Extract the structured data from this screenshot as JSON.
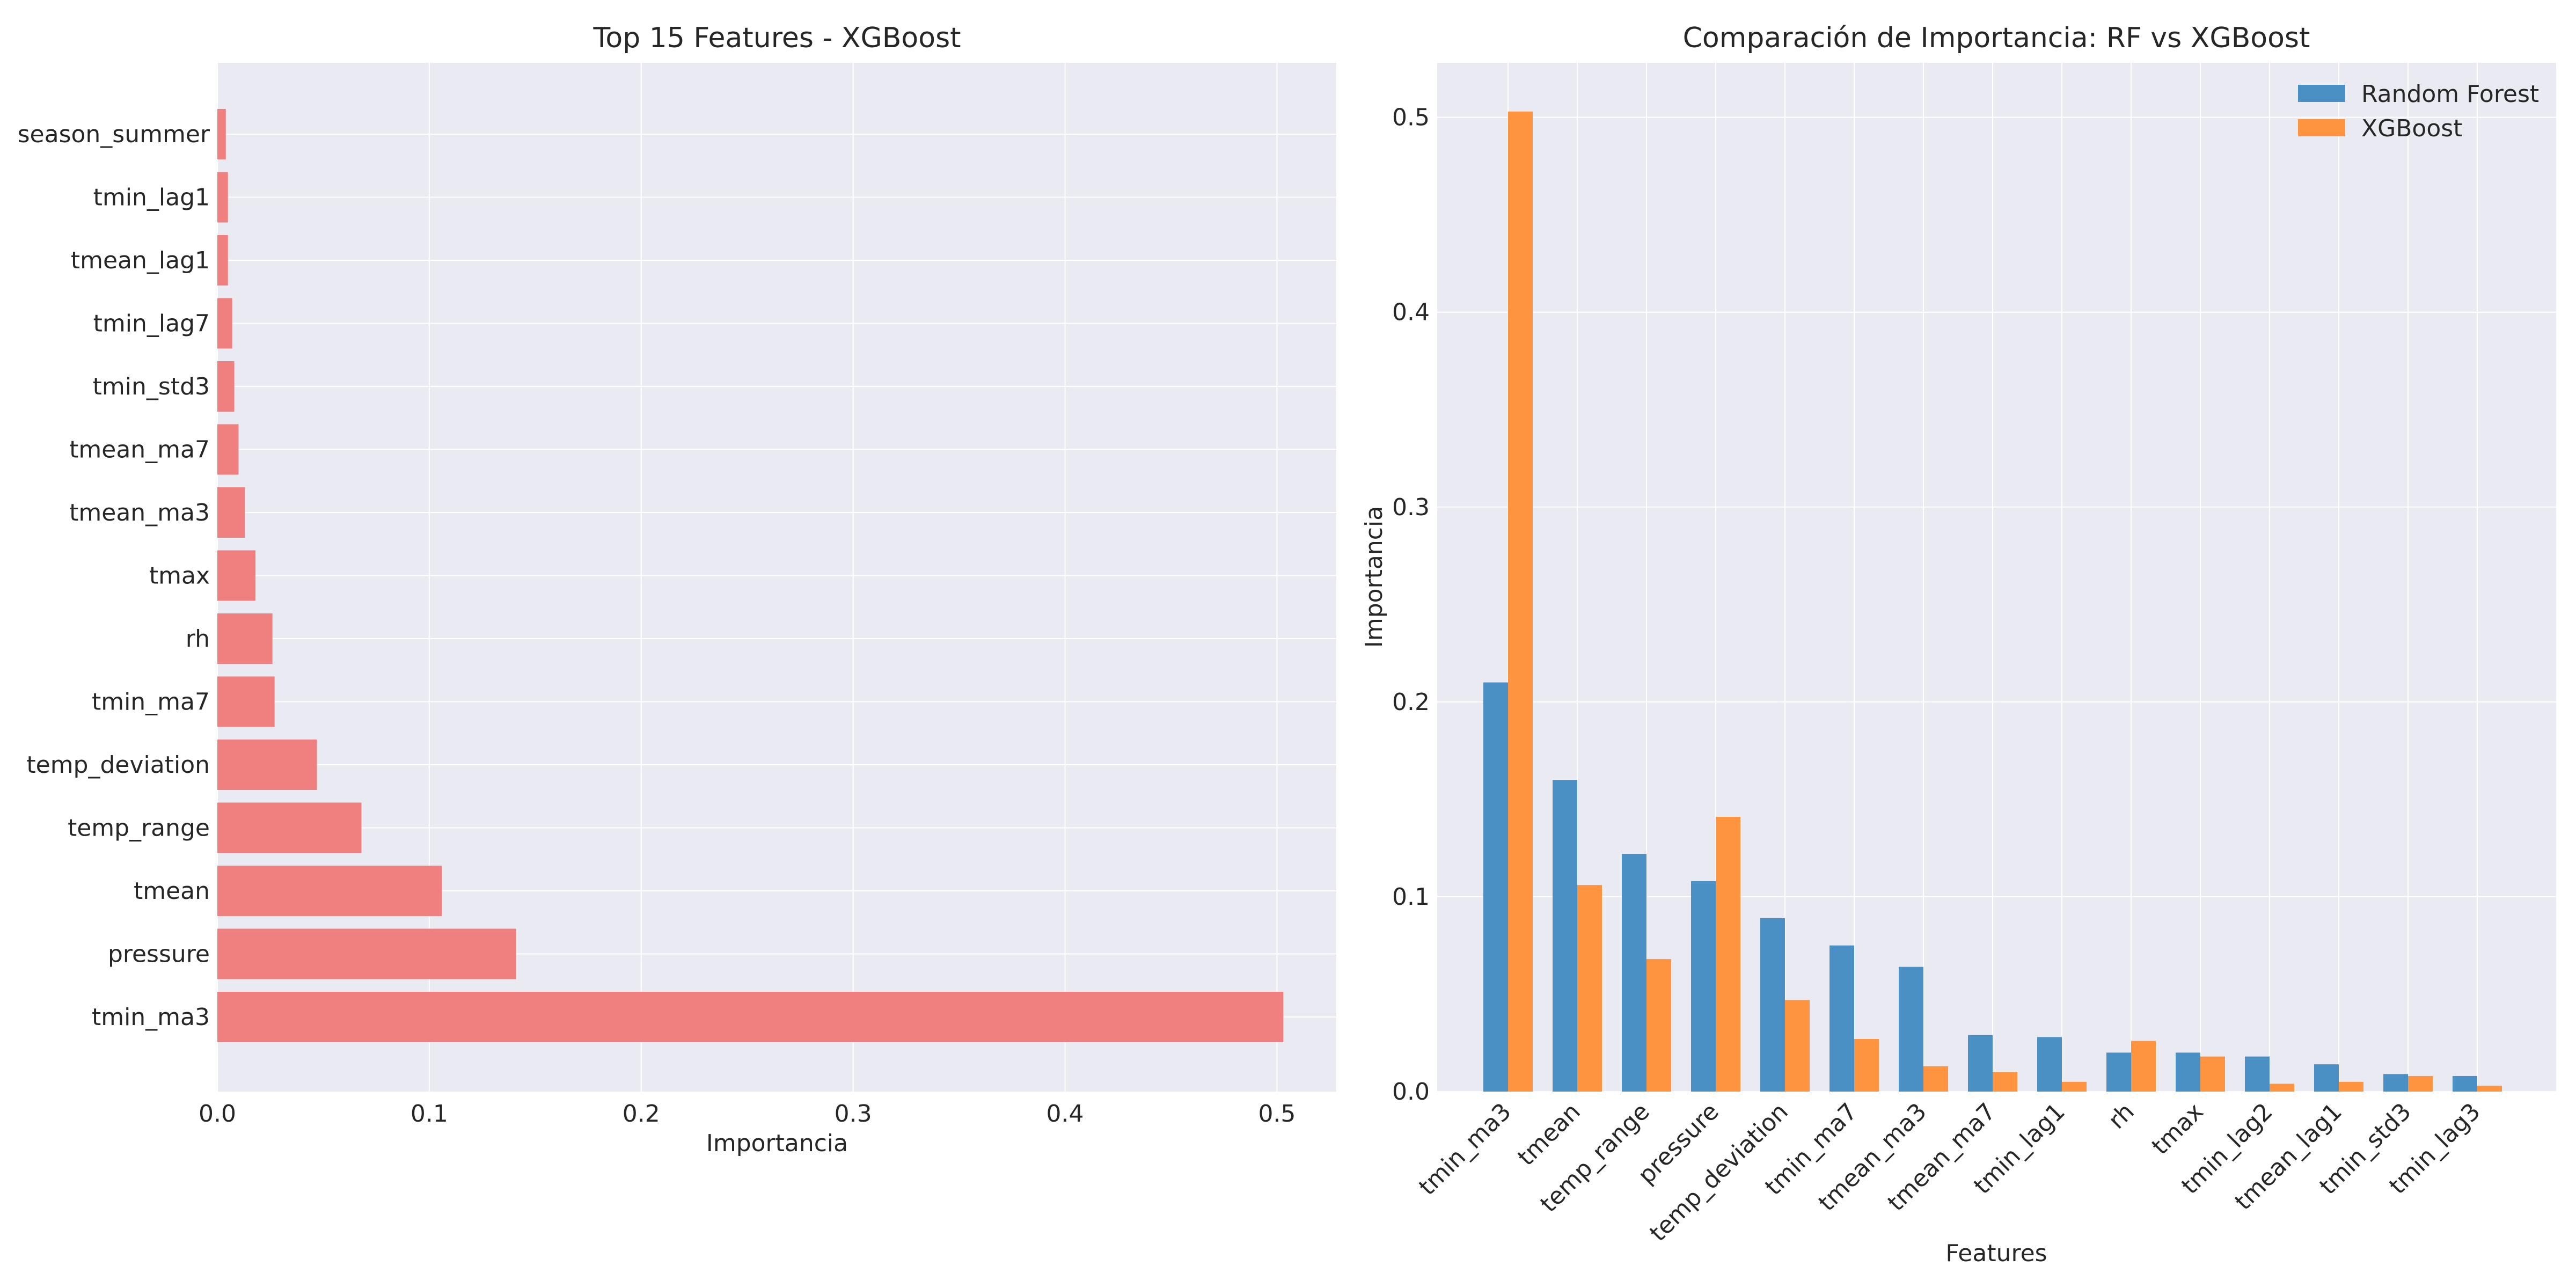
{
  "chart_data": [
    {
      "type": "bar",
      "orientation": "horizontal",
      "title": "Top 15 Features - XGBoost",
      "xlabel": "Importancia",
      "ylabel": "",
      "categories": [
        "tmin_ma3",
        "pressure",
        "tmean",
        "temp_range",
        "temp_deviation",
        "tmin_ma7",
        "rh",
        "tmax",
        "tmean_ma3",
        "tmean_ma7",
        "tmin_std3",
        "tmin_lag7",
        "tmean_lag1",
        "tmin_lag1",
        "season_summer"
      ],
      "values": [
        0.503,
        0.141,
        0.106,
        0.068,
        0.047,
        0.027,
        0.026,
        0.018,
        0.013,
        0.01,
        0.008,
        0.007,
        0.005,
        0.005,
        0.004
      ],
      "xlim": [
        0,
        0.528
      ],
      "xticks": [
        "0.0",
        "0.1",
        "0.2",
        "0.3",
        "0.4",
        "0.5"
      ],
      "color": "#f08080",
      "grid": true
    },
    {
      "type": "bar",
      "orientation": "vertical",
      "title": "Comparación de Importancia: RF vs XGBoost",
      "xlabel": "Features",
      "ylabel": "Importancia",
      "categories": [
        "tmin_ma3",
        "tmean",
        "temp_range",
        "pressure",
        "temp_deviation",
        "tmin_ma7",
        "tmean_ma3",
        "tmean_ma7",
        "tmin_lag1",
        "rh",
        "tmax",
        "tmin_lag2",
        "tmean_lag1",
        "tmin_std3",
        "tmin_lag3"
      ],
      "series": [
        {
          "name": "Random Forest",
          "color": "#4a90c4",
          "values": [
            0.21,
            0.16,
            0.122,
            0.108,
            0.089,
            0.075,
            0.064,
            0.029,
            0.028,
            0.02,
            0.02,
            0.018,
            0.014,
            0.009,
            0.008
          ]
        },
        {
          "name": "XGBoost",
          "color": "#ff9440",
          "values": [
            0.503,
            0.106,
            0.068,
            0.141,
            0.047,
            0.027,
            0.013,
            0.01,
            0.005,
            0.026,
            0.018,
            0.004,
            0.005,
            0.008,
            0.003
          ]
        }
      ],
      "ylim": [
        0,
        0.528
      ],
      "yticks": [
        "0.0",
        "0.1",
        "0.2",
        "0.3",
        "0.4",
        "0.5"
      ],
      "legend": "top-right",
      "grid": true
    }
  ]
}
